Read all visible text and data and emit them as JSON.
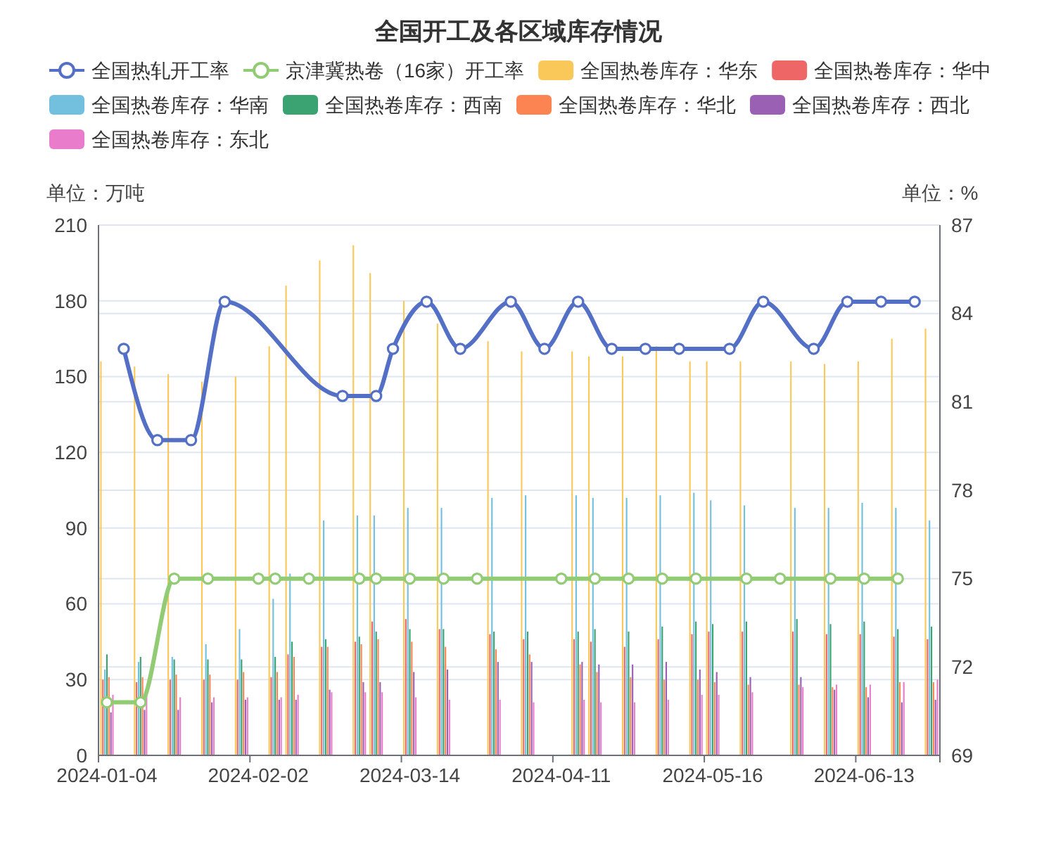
{
  "chart_data": {
    "type": "bar",
    "title": "全国开工及各区域库存情况",
    "ylabel": "单位：万吨",
    "y2label": "单位：%",
    "categories": [
      "2024-01-04",
      null,
      null,
      null,
      null,
      null,
      null,
      null,
      null,
      "2024-02-02",
      null,
      null,
      null,
      null,
      null,
      null,
      null,
      null,
      "2024-03-14",
      null,
      null,
      null,
      null,
      null,
      null,
      null,
      null,
      "2024-04-11",
      null,
      null,
      null,
      null,
      null,
      null,
      null,
      null,
      "2024-05-16",
      null,
      null,
      null,
      null,
      null,
      null,
      null,
      null,
      "2024-06-13",
      null,
      null,
      null,
      null
    ],
    "series": [
      {
        "name": "全国热轧开工率",
        "type": "line",
        "axis": "y2",
        "color": "#5470c6",
        "values": [
          null,
          82.8,
          null,
          79.7,
          null,
          79.7,
          null,
          84.4,
          null,
          null,
          null,
          null,
          null,
          null,
          81.2,
          null,
          81.2,
          82.8,
          null,
          84.4,
          null,
          82.8,
          null,
          null,
          84.4,
          null,
          82.8,
          null,
          84.4,
          null,
          82.8,
          null,
          82.8,
          null,
          82.8,
          null,
          null,
          82.8,
          null,
          84.4,
          null,
          null,
          82.8,
          null,
          84.4,
          null,
          84.4,
          null,
          84.4,
          null
        ]
      },
      {
        "name": "京津冀热卷（16家）开工率",
        "type": "line",
        "axis": "y2",
        "color": "#91cc75",
        "values": [
          70.8,
          null,
          70.8,
          null,
          75,
          null,
          75,
          null,
          null,
          75,
          75,
          null,
          75,
          null,
          null,
          75,
          75,
          null,
          75,
          null,
          75,
          null,
          75,
          null,
          null,
          null,
          null,
          75,
          null,
          75,
          null,
          75,
          null,
          75,
          null,
          75,
          null,
          null,
          75,
          null,
          75,
          null,
          null,
          75,
          null,
          75,
          null,
          75,
          null,
          null
        ]
      },
      {
        "name": "全国热卷库存：华东",
        "color": "#fac858",
        "values": [
          156,
          null,
          154,
          null,
          151,
          null,
          148,
          null,
          150,
          null,
          162,
          186,
          null,
          196,
          null,
          202,
          191,
          null,
          180,
          null,
          171,
          null,
          null,
          164,
          null,
          160,
          null,
          null,
          160,
          158,
          null,
          158,
          null,
          162,
          null,
          156,
          156,
          null,
          156,
          null,
          null,
          156,
          null,
          155,
          null,
          156,
          null,
          165,
          null,
          169
        ]
      },
      {
        "name": "全国热卷库存：华中",
        "color": "#ee6666",
        "values": [
          30,
          null,
          29,
          null,
          30,
          null,
          30,
          null,
          30,
          null,
          31,
          40,
          null,
          43,
          null,
          45,
          53,
          null,
          54,
          null,
          50,
          null,
          null,
          48,
          null,
          46,
          null,
          null,
          46,
          45,
          null,
          43,
          null,
          46,
          null,
          48,
          49,
          null,
          49,
          null,
          null,
          49,
          null,
          48,
          null,
          48,
          null,
          47,
          null,
          46
        ]
      },
      {
        "name": "全国热卷库存：华南",
        "color": "#73c0de",
        "values": [
          34,
          null,
          37,
          null,
          39,
          null,
          44,
          null,
          50,
          null,
          62,
          72,
          null,
          93,
          null,
          95,
          95,
          null,
          98,
          null,
          98,
          null,
          null,
          102,
          null,
          103,
          null,
          null,
          103,
          102,
          null,
          102,
          null,
          103,
          null,
          104,
          101,
          null,
          99,
          null,
          null,
          98,
          null,
          98,
          null,
          100,
          null,
          98,
          null,
          93
        ]
      },
      {
        "name": "全国热卷库存：西南",
        "color": "#3ba272",
        "values": [
          40,
          null,
          39,
          null,
          38,
          null,
          38,
          null,
          38,
          null,
          39,
          45,
          null,
          46,
          null,
          47,
          49,
          null,
          50,
          null,
          50,
          null,
          null,
          49,
          null,
          49,
          null,
          null,
          49,
          50,
          null,
          49,
          null,
          51,
          null,
          53,
          52,
          null,
          53,
          null,
          null,
          54,
          null,
          52,
          null,
          53,
          null,
          50,
          null,
          51
        ]
      },
      {
        "name": "全国热卷库存：华北",
        "color": "#fc8452",
        "values": [
          31,
          null,
          31,
          null,
          32,
          null,
          32,
          null,
          33,
          null,
          33,
          39,
          null,
          43,
          null,
          44,
          46,
          null,
          45,
          null,
          43,
          null,
          null,
          42,
          null,
          40,
          null,
          null,
          36,
          33,
          null,
          31,
          null,
          30,
          null,
          30,
          29,
          null,
          28,
          null,
          null,
          28,
          null,
          27,
          null,
          27,
          null,
          29,
          null,
          29
        ]
      },
      {
        "name": "全国热卷库存：西北",
        "color": "#9a60b4",
        "values": [
          17,
          null,
          18,
          null,
          18,
          null,
          21,
          null,
          22,
          null,
          22,
          22,
          null,
          26,
          null,
          29,
          29,
          null,
          33,
          null,
          34,
          null,
          null,
          37,
          null,
          37,
          null,
          null,
          37,
          36,
          null,
          36,
          null,
          37,
          null,
          34,
          33,
          null,
          31,
          null,
          null,
          31,
          null,
          26,
          null,
          23,
          null,
          21,
          null,
          22
        ]
      },
      {
        "name": "全国热卷库存：东北",
        "color": "#ea7ccc",
        "values": [
          24,
          null,
          24,
          null,
          23,
          null,
          23,
          null,
          23,
          null,
          23,
          24,
          null,
          25,
          null,
          25,
          25,
          null,
          23,
          null,
          22,
          null,
          null,
          22,
          null,
          21,
          null,
          null,
          22,
          21,
          null,
          21,
          null,
          22,
          null,
          24,
          24,
          null,
          25,
          null,
          null,
          27,
          null,
          28,
          null,
          28,
          null,
          29,
          null,
          30
        ]
      }
    ],
    "ylim": [
      0,
      210
    ],
    "yticks": [
      0,
      30,
      60,
      90,
      120,
      150,
      180,
      210
    ],
    "y2lim": [
      69,
      87
    ],
    "y2ticks": [
      69,
      72,
      75,
      78,
      81,
      84,
      87
    ],
    "grid": "y",
    "legend": "top",
    "marker": "circle"
  }
}
